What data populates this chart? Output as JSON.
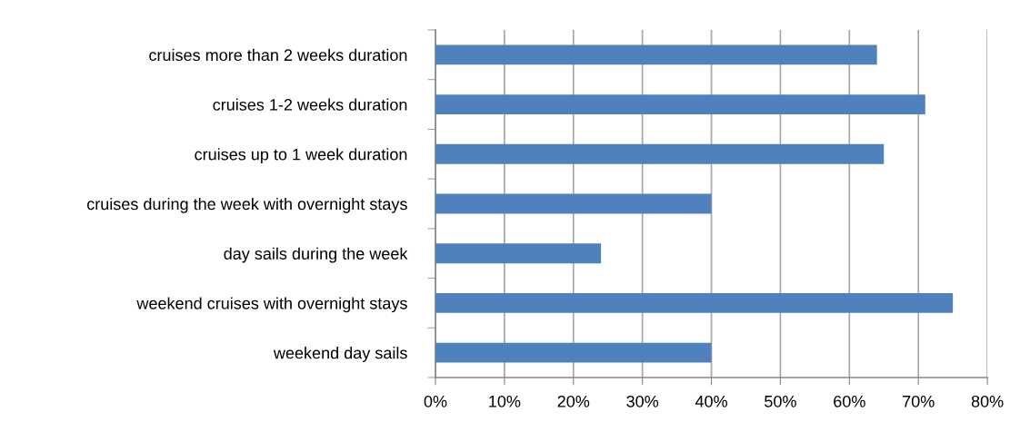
{
  "chart_data": {
    "type": "bar",
    "orientation": "horizontal",
    "categories": [
      "cruises more than 2 weeks duration",
      "cruises 1-2 weeks duration",
      "cruises up to 1 week duration",
      "cruises during the week with overnight stays",
      "day sails during the week",
      "weekend cruises with overnight stays",
      "weekend day sails"
    ],
    "values": [
      64,
      71,
      65,
      40,
      24,
      75,
      40
    ],
    "color": "#4f81bd",
    "xlim": [
      0,
      80
    ],
    "xticks": [
      {
        "value": 0,
        "label": "0%"
      },
      {
        "value": 10,
        "label": "10%"
      },
      {
        "value": 20,
        "label": "20%"
      },
      {
        "value": 30,
        "label": "30%"
      },
      {
        "value": 40,
        "label": "40%"
      },
      {
        "value": 50,
        "label": "50%"
      },
      {
        "value": 60,
        "label": "60%"
      },
      {
        "value": 70,
        "label": "70%"
      },
      {
        "value": 80,
        "label": "80%"
      }
    ],
    "grid": "x"
  }
}
